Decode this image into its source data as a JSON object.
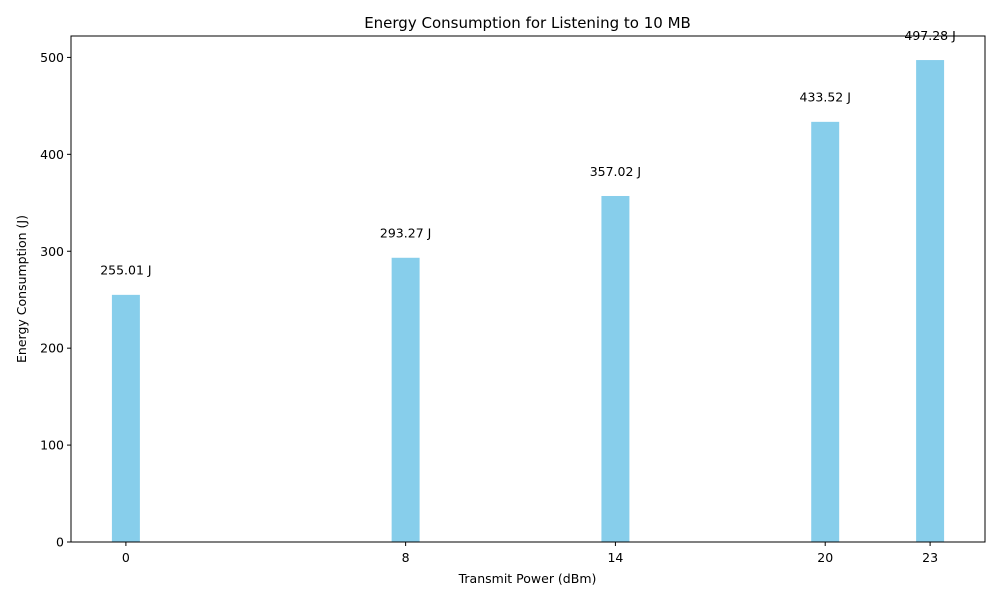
{
  "chart_data": {
    "type": "bar",
    "title": "Energy Consumption for Listening to 10 MB",
    "xlabel": "Transmit Power (dBm)",
    "ylabel": "Energy Consumption (J)",
    "x": [
      0,
      8,
      14,
      20,
      23
    ],
    "x_ticks": [
      "0",
      "8",
      "14",
      "20",
      "23"
    ],
    "values": [
      255.01,
      293.27,
      357.02,
      433.52,
      497.28
    ],
    "data_labels": [
      "255.01 J",
      "293.27 J",
      "357.02 J",
      "433.52 J",
      "497.28 J"
    ],
    "xlim": [
      -1.57,
      24.57
    ],
    "ylim": [
      0,
      522.1
    ],
    "y_ticks": [
      0,
      100,
      200,
      300,
      400,
      500
    ],
    "bar_width": 0.8,
    "grid": false,
    "colors": {
      "bar": "#87ceeb",
      "axis": "#000000"
    }
  }
}
